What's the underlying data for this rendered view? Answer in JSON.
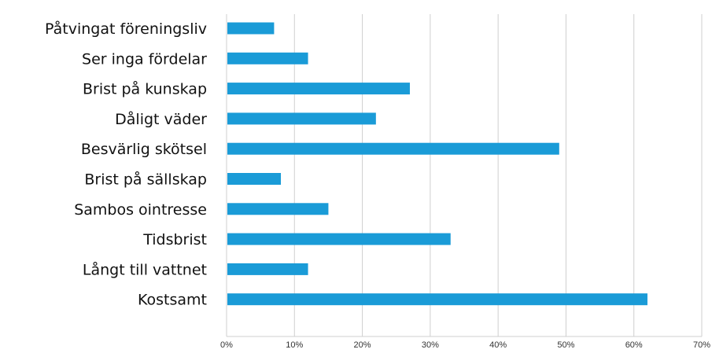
{
  "chart_data": {
    "type": "bar",
    "orientation": "horizontal",
    "categories": [
      "Påtvingat föreningsliv",
      "Ser inga fördelar",
      "Brist på kunskap",
      "Dåligt väder",
      "Besvärlig skötsel",
      "Brist på sällskap",
      "Sambos ointresse",
      "Tidsbrist",
      "Långt till vattnet",
      "Kostsamt"
    ],
    "values": [
      7,
      12,
      27,
      22,
      49,
      8,
      15,
      33,
      12,
      62
    ],
    "xlim": [
      0,
      70
    ],
    "xticks": [
      0,
      10,
      20,
      30,
      40,
      50,
      60,
      70
    ],
    "xtick_labels": [
      "0%",
      "10%",
      "20%",
      "30%",
      "40%",
      "50%",
      "60%",
      "70%"
    ],
    "title": "",
    "xlabel": "",
    "ylabel": "",
    "grid": "vertical",
    "legend": "none",
    "bar_color": "#1a9bd7",
    "grid_color": "#cfcfcf"
  }
}
